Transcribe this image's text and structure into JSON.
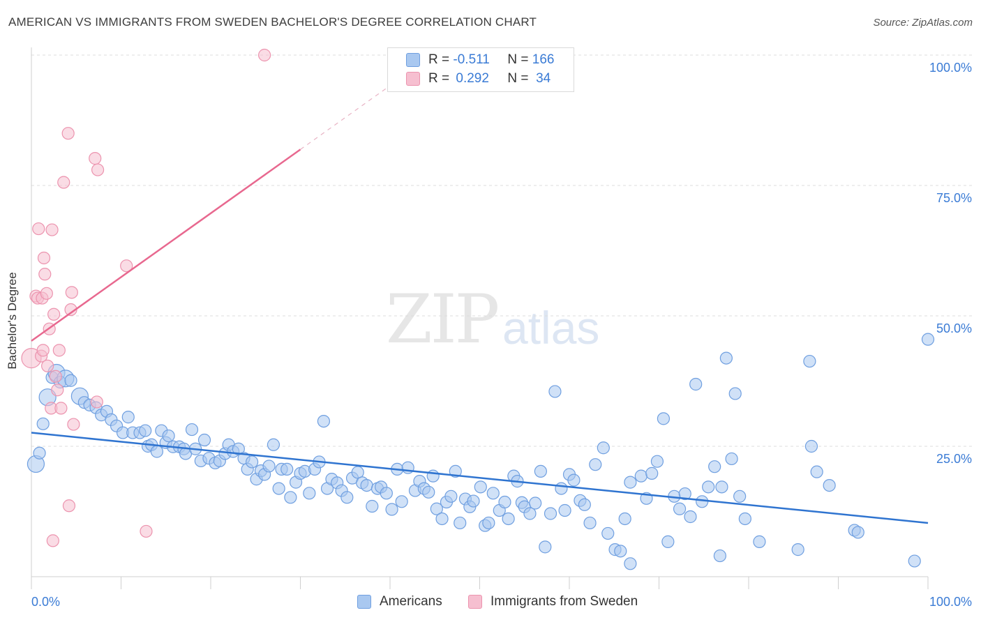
{
  "header": {
    "title": "AMERICAN VS IMMIGRANTS FROM SWEDEN BACHELOR'S DEGREE CORRELATION CHART",
    "source": "Source: ZipAtlas.com"
  },
  "watermark": {
    "zip": "ZIP",
    "atlas": "atlas"
  },
  "legend": {
    "rows": [
      {
        "r_label": "R =",
        "r_value": "-0.511",
        "n_label": "N =",
        "n_value": "166"
      },
      {
        "r_label": "R =",
        "r_value": "0.292",
        "n_label": "N =",
        "n_value": "34"
      }
    ]
  },
  "bottom_legend": {
    "americans": "Americans",
    "sweden": "Immigrants from Sweden"
  },
  "colors": {
    "blue_fill": "#a9c8f0",
    "blue_stroke": "#6f9fe0",
    "blue_line": "#2f74d0",
    "pink_fill": "#f6bfd0",
    "pink_stroke": "#ec93ae",
    "pink_line": "#e8688f",
    "tick_blue": "#3a7bd5"
  },
  "chart_data": {
    "type": "scatter",
    "title": "AMERICAN VS IMMIGRANTS FROM SWEDEN BACHELOR'S DEGREE CORRELATION CHART",
    "xlabel": "",
    "ylabel": "Bachelor's Degree",
    "xlim": [
      0,
      100
    ],
    "ylim": [
      0,
      100
    ],
    "x_tick_labels": [
      "0.0%",
      "100.0%"
    ],
    "y_tick_labels": [
      "25.0%",
      "50.0%",
      "75.0%",
      "100.0%"
    ],
    "y_ticks": [
      25,
      50,
      75,
      100
    ],
    "grid": true,
    "series": [
      {
        "name": "Americans",
        "color": "#6f9fe0",
        "r": -0.511,
        "n": 166,
        "trend": {
          "x": [
            0,
            100
          ],
          "y": [
            27.6,
            10.3
          ]
        },
        "points": [
          [
            0.5,
            21.6
          ],
          [
            0.9,
            23.7
          ],
          [
            1.3,
            29.3
          ],
          [
            1.8,
            34.4
          ],
          [
            2.3,
            38.2
          ],
          [
            2.8,
            39.1
          ],
          [
            3.2,
            37.3
          ],
          [
            3.8,
            38
          ],
          [
            4.4,
            37.6
          ],
          [
            5.4,
            34.6
          ],
          [
            5.9,
            33.4
          ],
          [
            6.5,
            32.9
          ],
          [
            7.2,
            32.4
          ],
          [
            7.8,
            31
          ],
          [
            8.4,
            31.7
          ],
          [
            8.9,
            30.1
          ],
          [
            9.5,
            28.9
          ],
          [
            10.2,
            27.6
          ],
          [
            10.8,
            30.6
          ],
          [
            11.3,
            27.6
          ],
          [
            12.1,
            27.6
          ],
          [
            12.7,
            28
          ],
          [
            13,
            25
          ],
          [
            13.4,
            25.3
          ],
          [
            14,
            24
          ],
          [
            14.5,
            28
          ],
          [
            15,
            25.7
          ],
          [
            15.3,
            27
          ],
          [
            15.8,
            24.9
          ],
          [
            16.5,
            24.9
          ],
          [
            17,
            24.5
          ],
          [
            17.2,
            23.6
          ],
          [
            17.9,
            28.2
          ],
          [
            18.3,
            24.5
          ],
          [
            18.9,
            22.2
          ],
          [
            19.3,
            26.2
          ],
          [
            19.8,
            22.7
          ],
          [
            20.5,
            21.8
          ],
          [
            21,
            22.2
          ],
          [
            21.6,
            23.6
          ],
          [
            22,
            25.3
          ],
          [
            22.5,
            24
          ],
          [
            23.1,
            24.5
          ],
          [
            23.7,
            22.7
          ],
          [
            24.1,
            20.6
          ],
          [
            24.6,
            22
          ],
          [
            25.1,
            18.7
          ],
          [
            25.6,
            20.3
          ],
          [
            26,
            19.6
          ],
          [
            26.5,
            21.2
          ],
          [
            27,
            25.3
          ],
          [
            27.6,
            16.9
          ],
          [
            27.9,
            20.6
          ],
          [
            28.5,
            20.6
          ],
          [
            28.9,
            15.2
          ],
          [
            29.5,
            18.1
          ],
          [
            30,
            19.8
          ],
          [
            30.5,
            20.2
          ],
          [
            31,
            16
          ],
          [
            31.6,
            20.6
          ],
          [
            32.1,
            22
          ],
          [
            32.6,
            29.8
          ],
          [
            33,
            16.9
          ],
          [
            33.5,
            18.7
          ],
          [
            34.1,
            18
          ],
          [
            34.6,
            16.5
          ],
          [
            35.2,
            15.2
          ],
          [
            35.8,
            18.9
          ],
          [
            36.4,
            20
          ],
          [
            36.9,
            18
          ],
          [
            37.4,
            17.5
          ],
          [
            38,
            13.5
          ],
          [
            38.6,
            16.9
          ],
          [
            39,
            17.2
          ],
          [
            39.6,
            16
          ],
          [
            40.2,
            12.9
          ],
          [
            40.8,
            20.6
          ],
          [
            41.3,
            14.4
          ],
          [
            42,
            20.9
          ],
          [
            42.8,
            16.5
          ],
          [
            43.3,
            18.3
          ],
          [
            43.8,
            16.9
          ],
          [
            44.3,
            16.2
          ],
          [
            44.8,
            19.3
          ],
          [
            45.2,
            13
          ],
          [
            45.8,
            11.1
          ],
          [
            46.3,
            14.3
          ],
          [
            46.8,
            15.4
          ],
          [
            47.3,
            20.2
          ],
          [
            47.8,
            10.3
          ],
          [
            48.4,
            14.9
          ],
          [
            48.9,
            13.4
          ],
          [
            49.3,
            14.5
          ],
          [
            50.1,
            17.2
          ],
          [
            50.6,
            9.8
          ],
          [
            51,
            10.3
          ],
          [
            51.5,
            16
          ],
          [
            52.2,
            12.7
          ],
          [
            52.8,
            14.3
          ],
          [
            53.2,
            11.1
          ],
          [
            53.8,
            19.3
          ],
          [
            54.2,
            18.3
          ],
          [
            54.7,
            14.2
          ],
          [
            55,
            13.4
          ],
          [
            55.6,
            12.1
          ],
          [
            56.2,
            14.1
          ],
          [
            56.8,
            20.2
          ],
          [
            57.3,
            5.7
          ],
          [
            57.9,
            12.1
          ],
          [
            58.4,
            35.5
          ],
          [
            59.1,
            16.9
          ],
          [
            59.5,
            12.7
          ],
          [
            60,
            19.6
          ],
          [
            60.5,
            18.5
          ],
          [
            61.2,
            14.6
          ],
          [
            61.7,
            13.8
          ],
          [
            62.3,
            10.3
          ],
          [
            62.9,
            21.5
          ],
          [
            63.8,
            24.7
          ],
          [
            64.3,
            8.3
          ],
          [
            65.1,
            5.2
          ],
          [
            65.7,
            4.9
          ],
          [
            66.2,
            11.1
          ],
          [
            66.8,
            18.1
          ],
          [
            66.8,
            2.5
          ],
          [
            68,
            19.3
          ],
          [
            68.6,
            15
          ],
          [
            69.2,
            19.8
          ],
          [
            69.8,
            22.1
          ],
          [
            70.5,
            30.3
          ],
          [
            71,
            6.7
          ],
          [
            71.7,
            15.4
          ],
          [
            72.3,
            13
          ],
          [
            72.9,
            15.9
          ],
          [
            73.5,
            11.5
          ],
          [
            74.1,
            36.9
          ],
          [
            74.8,
            14.4
          ],
          [
            75.5,
            17.2
          ],
          [
            76.2,
            21.1
          ],
          [
            76.8,
            4
          ],
          [
            77,
            17.2
          ],
          [
            77.5,
            41.9
          ],
          [
            78.1,
            22.6
          ],
          [
            78.5,
            35.1
          ],
          [
            79,
            15.4
          ],
          [
            79.6,
            11.1
          ],
          [
            81.2,
            6.7
          ],
          [
            85.5,
            5.2
          ],
          [
            86.8,
            41.3
          ],
          [
            87.6,
            20.1
          ],
          [
            87,
            25
          ],
          [
            89,
            17.5
          ],
          [
            91.8,
            8.9
          ],
          [
            92.2,
            8.5
          ],
          [
            98.5,
            3
          ],
          [
            100,
            45.5
          ]
        ]
      },
      {
        "name": "Immigrants from Sweden",
        "color": "#ec93ae",
        "r": 0.292,
        "n": 34,
        "trend": {
          "x": [
            0,
            30
          ],
          "y": [
            45.2,
            81.9
          ]
        },
        "points": [
          [
            0,
            41.9
          ],
          [
            0.5,
            53.8
          ],
          [
            0.7,
            53.4
          ],
          [
            0.8,
            66.7
          ],
          [
            1.1,
            42.3
          ],
          [
            1.2,
            53.4
          ],
          [
            1.3,
            43.4
          ],
          [
            1.4,
            61.1
          ],
          [
            1.5,
            58
          ],
          [
            1.7,
            54.3
          ],
          [
            1.8,
            40.4
          ],
          [
            2,
            47.5
          ],
          [
            2.2,
            32.3
          ],
          [
            2.4,
            6.9
          ],
          [
            2.3,
            66.5
          ],
          [
            2.5,
            50.3
          ],
          [
            2.7,
            38.4
          ],
          [
            2.9,
            35.8
          ],
          [
            3.1,
            43.4
          ],
          [
            3.3,
            32.3
          ],
          [
            3.6,
            75.6
          ],
          [
            4.1,
            85
          ],
          [
            4.2,
            13.6
          ],
          [
            4.4,
            51.2
          ],
          [
            4.5,
            54.5
          ],
          [
            4.7,
            29.2
          ],
          [
            7.1,
            80.2
          ],
          [
            7.3,
            33.5
          ],
          [
            7.4,
            78
          ],
          [
            10.6,
            59.6
          ],
          [
            12.8,
            8.7
          ],
          [
            26,
            100
          ]
        ]
      }
    ]
  }
}
